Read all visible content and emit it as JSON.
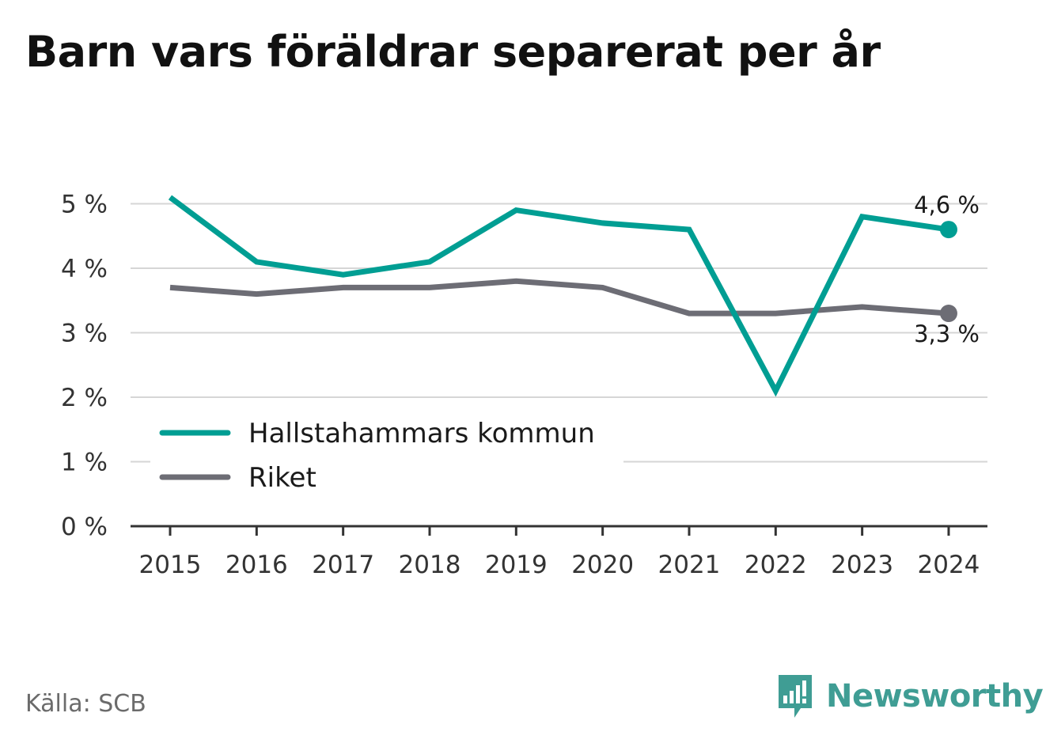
{
  "title": "Barn vars föräldrar separerat per år",
  "source": "Källa: SCB",
  "brand": "Newsworthy",
  "colors": {
    "series_0": "#009e93",
    "series_1": "#6d6d75",
    "grid": "#d6d6d6",
    "axis": "#333333",
    "brand": "#3f9d94"
  },
  "chart_data": {
    "type": "line",
    "x": [
      "2015",
      "2016",
      "2017",
      "2018",
      "2019",
      "2020",
      "2021",
      "2022",
      "2023",
      "2024"
    ],
    "series": [
      {
        "name": "Hallstahammars kommun",
        "values": [
          5.1,
          4.1,
          3.9,
          4.1,
          4.9,
          4.7,
          4.6,
          2.1,
          4.8,
          4.6
        ],
        "end_label": "4,6 %"
      },
      {
        "name": "Riket",
        "values": [
          3.7,
          3.6,
          3.7,
          3.7,
          3.8,
          3.7,
          3.3,
          3.3,
          3.4,
          3.3
        ],
        "end_label": "3,3 %"
      }
    ],
    "y_ticks": [
      0,
      1,
      2,
      3,
      4,
      5
    ],
    "y_tick_labels": [
      "0 %",
      "1 %",
      "2 %",
      "3 %",
      "4 %",
      "5 %"
    ],
    "ylim": [
      0,
      5
    ],
    "grid": true,
    "legend": "bottom-left"
  }
}
